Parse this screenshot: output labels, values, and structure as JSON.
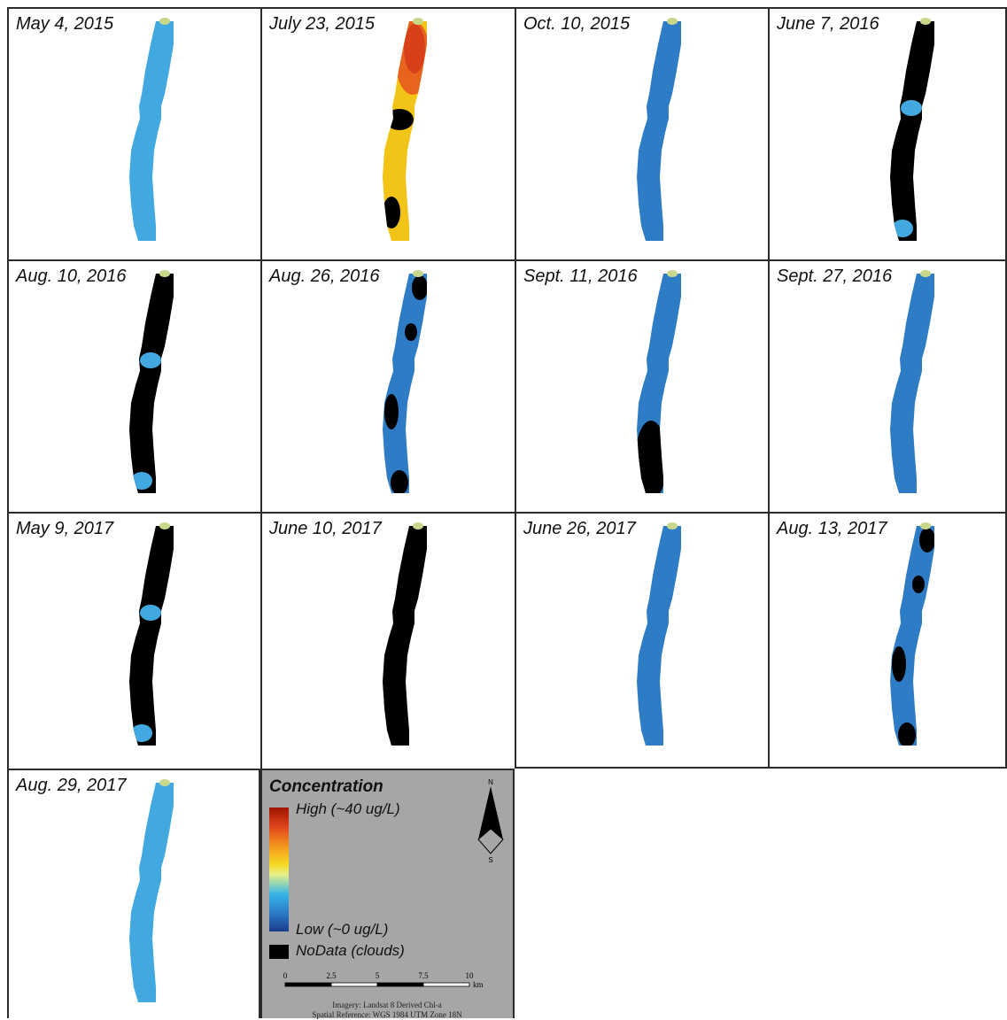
{
  "panels": [
    {
      "date": "May 4, 2015",
      "fill": "light-blue"
    },
    {
      "date": "July 23, 2015",
      "fill": "yellow-orange"
    },
    {
      "date": "Oct. 10, 2015",
      "fill": "blue"
    },
    {
      "date": "June 7, 2016",
      "fill": "mostly-nodata"
    },
    {
      "date": "Aug. 10, 2016",
      "fill": "mostly-nodata"
    },
    {
      "date": "Aug. 26, 2016",
      "fill": "blue-partial-nodata"
    },
    {
      "date": "Sept. 11, 2016",
      "fill": "blue-lower-nodata"
    },
    {
      "date": "Sept. 27, 2016",
      "fill": "blue"
    },
    {
      "date": "May 9, 2017",
      "fill": "mostly-nodata"
    },
    {
      "date": "June 10, 2017",
      "fill": "all-nodata"
    },
    {
      "date": "June 26, 2017",
      "fill": "blue"
    },
    {
      "date": "Aug. 13, 2017",
      "fill": "blue-partial-nodata"
    },
    {
      "date": "Aug. 29, 2017",
      "fill": "light-blue"
    }
  ],
  "legend": {
    "title": "Concentration",
    "high_label": "High (~40 ug/L)",
    "low_label": "Low (~0 ug/L)",
    "nodata_label": "NoData (clouds)",
    "north_n": "N",
    "north_s": "S",
    "scale_ticks": [
      "0",
      "2.5",
      "5",
      "7.5",
      "10"
    ],
    "scale_unit": "km",
    "credit_imagery": "Imagery: Landsat 8 Derived Chl-a",
    "credit_reference": "Spatial Reference: WGS 1984 UTM Zone 18N"
  },
  "colors": {
    "light_blue": "#42a9e0",
    "blue": "#2f7cc6",
    "nodata": "#000000",
    "high_red": "#a01400",
    "orange": "#e8641c",
    "yellow": "#f2c418",
    "legend_bg": "#a6a6a6"
  }
}
